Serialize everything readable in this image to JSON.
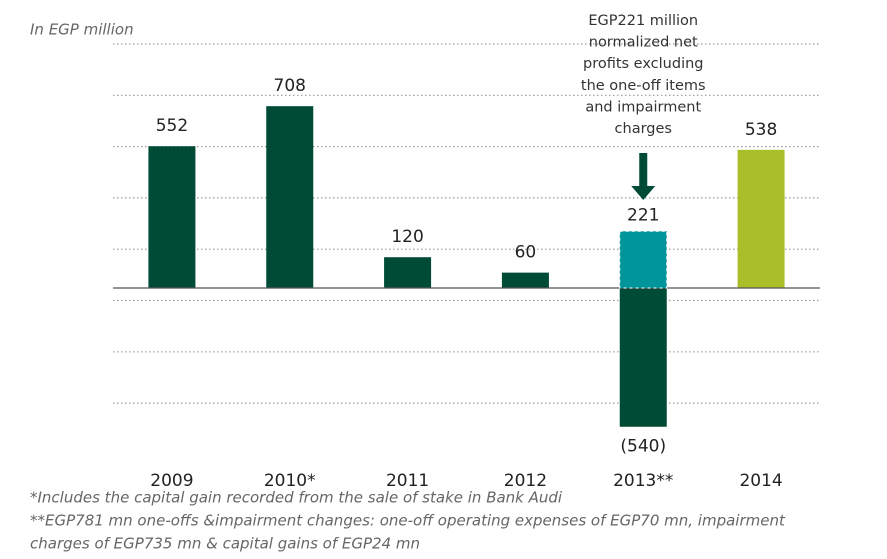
{
  "chart_data": {
    "type": "bar",
    "subtitle": "In EGP million",
    "categories": [
      "2009",
      "2010*",
      "2011",
      "2012",
      "2013**",
      "2014"
    ],
    "values": [
      552,
      708,
      120,
      60,
      -540,
      538
    ],
    "value_labels": [
      "552",
      "708",
      "120",
      "60",
      "(540)",
      "538"
    ],
    "colors": [
      "#004b35",
      "#004b35",
      "#004b35",
      "#004b35",
      "#004b35",
      "#a9bf2a"
    ],
    "ylim": [
      -650,
      950
    ],
    "grid": true,
    "annotation": {
      "category_index": 4,
      "value": 221,
      "color": "#00949b",
      "lines": [
        "EGP221 million",
        "normalized net",
        "profits excluding",
        "the one-off items",
        "and impairment",
        "charges"
      ]
    },
    "footnotes": [
      "*Includes the capital gain recorded from the sale of stake in Bank Audi",
      "**EGP781 mn one-offs &impairment changes: one-off operating expenses of EGP70 mn, impairment",
      "charges of EGP735 mn  & capital gains of EGP24 mn"
    ]
  }
}
